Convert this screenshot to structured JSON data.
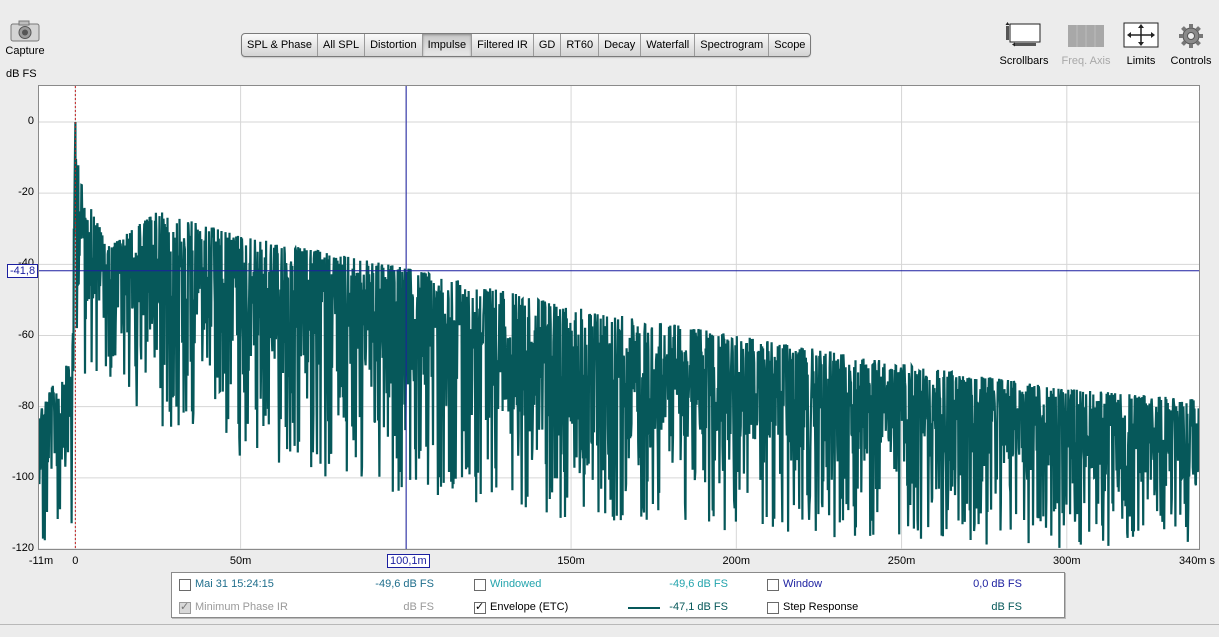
{
  "toolbar": {
    "capture_label": "Capture",
    "tabs": [
      "SPL & Phase",
      "All SPL",
      "Distortion",
      "Impulse",
      "Filtered IR",
      "GD",
      "RT60",
      "Decay",
      "Waterfall",
      "Spectrogram",
      "Scope"
    ],
    "active_tab": "Impulse",
    "right_tools": {
      "scrollbars": "Scrollbars",
      "freq_axis": "Freq. Axis",
      "limits": "Limits",
      "controls": "Controls"
    }
  },
  "plot": {
    "y_unit": "dB FS",
    "y_ticks": [
      "0",
      "-20",
      "-40",
      "-60",
      "-80",
      "-100",
      "-120"
    ],
    "x_ticks": [
      "-11m",
      "0",
      "50m",
      "150m",
      "200m",
      "250m",
      "300m",
      "340m s"
    ],
    "cursor": {
      "x_label": "100,1m",
      "y_label": "-41,8"
    }
  },
  "chart_data": {
    "type": "line",
    "xlabel": "",
    "ylabel": "dB FS",
    "x_unit": "s",
    "xlim": [
      -0.011,
      0.34
    ],
    "ylim": [
      -120,
      0
    ],
    "x_ticks": [
      -0.011,
      0,
      0.05,
      0.1,
      0.15,
      0.2,
      0.25,
      0.3,
      0.34
    ],
    "y_ticks": [
      0,
      -20,
      -40,
      -60,
      -80,
      -100,
      -120
    ],
    "grid": true,
    "series": [
      {
        "name": "Envelope (ETC)",
        "color": "#06585a",
        "description": "noisy decaying impulse response envelope",
        "x": [
          -0.011,
          -0.001,
          0.0,
          0.002,
          0.01,
          0.025,
          0.05,
          0.1,
          0.15,
          0.2,
          0.25,
          0.3,
          0.34
        ],
        "y_upper": [
          -80,
          -66,
          0,
          -18,
          -35,
          -25,
          -32,
          -41,
          -52,
          -60,
          -68,
          -75,
          -78
        ],
        "y_lower": [
          -120,
          -120,
          -85,
          -72,
          -75,
          -85,
          -95,
          -105,
          -112,
          -115,
          -118,
          -120,
          -120
        ]
      }
    ],
    "cursor": {
      "x": 0.1001,
      "y": -41.8
    }
  },
  "legend": {
    "rows": [
      [
        {
          "label": "Mai 31 15:24:15",
          "value": "-49,6 dB FS",
          "checked": false,
          "color": "#1f6e8c"
        },
        {
          "label": "Windowed",
          "value": "-49,6 dB FS",
          "checked": false,
          "color": "#23a4ad"
        },
        {
          "label": "Window",
          "value": "0,0 dB FS",
          "checked": false,
          "color": "#1b1fa0"
        }
      ],
      [
        {
          "label": "Minimum Phase IR",
          "value": "dB FS",
          "checked": true,
          "color": "#9a9a9a"
        },
        {
          "label": "Envelope (ETC)",
          "value": "-47,1 dB FS",
          "checked": true,
          "color": "#06585a"
        },
        {
          "label": "Step Response",
          "value": "dB FS",
          "checked": false,
          "color": "#06585a"
        }
      ]
    ]
  },
  "colors": {
    "trace": "#06585a",
    "cursor": "#1b1fa0",
    "marker": "#c02020",
    "grid": "#d6d6d6"
  }
}
